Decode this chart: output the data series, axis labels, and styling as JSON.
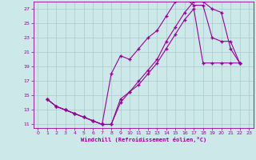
{
  "xlabel": "Windchill (Refroidissement éolien,°C)",
  "bg_color": "#cce8e8",
  "grid_color": "#aacccc",
  "line_color": "#990099",
  "xlim": [
    -0.5,
    23.5
  ],
  "ylim": [
    10.5,
    28.0
  ],
  "xticks": [
    0,
    1,
    2,
    3,
    4,
    5,
    6,
    7,
    8,
    9,
    10,
    11,
    12,
    13,
    14,
    15,
    16,
    17,
    18,
    19,
    20,
    21,
    22,
    23
  ],
  "yticks": [
    11,
    13,
    15,
    17,
    19,
    21,
    23,
    25,
    27
  ],
  "line1_x": [
    1,
    2,
    3,
    4,
    5,
    6,
    7,
    8,
    9,
    10,
    11,
    12,
    13,
    14,
    15,
    16,
    17,
    18,
    19,
    20,
    21,
    22
  ],
  "line1_y": [
    14.5,
    13.5,
    13.0,
    12.5,
    12.0,
    11.5,
    11.0,
    11.0,
    14.0,
    15.5,
    17.0,
    18.5,
    20.0,
    22.5,
    24.5,
    26.5,
    28.0,
    28.0,
    27.0,
    26.5,
    21.5,
    19.5
  ],
  "line2_x": [
    1,
    2,
    3,
    4,
    5,
    6,
    7,
    8,
    9,
    10,
    11,
    12,
    13,
    14,
    15,
    16,
    17,
    18,
    19,
    20,
    21,
    22
  ],
  "line2_y": [
    14.5,
    13.5,
    13.0,
    12.5,
    12.0,
    11.5,
    11.0,
    18.0,
    20.5,
    20.0,
    21.5,
    23.0,
    24.0,
    26.0,
    28.0,
    28.5,
    27.5,
    27.5,
    23.0,
    22.5,
    22.5,
    19.5
  ],
  "line3_x": [
    1,
    2,
    3,
    4,
    5,
    6,
    7,
    8,
    9,
    10,
    11,
    12,
    13,
    14,
    15,
    16,
    17,
    18,
    19,
    20,
    21,
    22
  ],
  "line3_y": [
    14.5,
    13.5,
    13.0,
    12.5,
    12.0,
    11.5,
    11.0,
    11.0,
    14.5,
    15.5,
    16.5,
    18.0,
    19.5,
    21.5,
    23.5,
    25.5,
    27.0,
    19.5,
    19.5,
    19.5,
    19.5,
    19.5
  ],
  "marker": "x",
  "markersize": 2.5,
  "linewidth": 0.8
}
